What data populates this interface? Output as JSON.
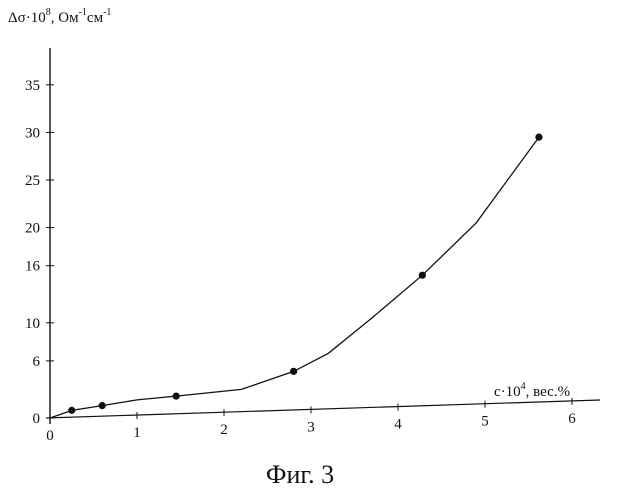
{
  "caption": "Фиг. 3",
  "chart_data": {
    "type": "line",
    "title": "",
    "ylabel": {
      "base": "Δσ·10",
      "exp1": "8",
      "mid": ", Ом",
      "exp2": "-1",
      "mid2": "см",
      "exp3": "-1"
    },
    "xlabel": {
      "base": "c·10",
      "exp1": "4",
      "rest": ", вес.%"
    },
    "xlim": [
      0,
      6.3
    ],
    "ylim": [
      0,
      38
    ],
    "x_ticks": [
      0,
      1,
      2,
      3,
      4,
      5,
      6
    ],
    "y_ticks": [
      {
        "value": 0,
        "label": "0"
      },
      {
        "value": 6,
        "label": "6"
      },
      {
        "value": 10,
        "label": "10"
      },
      {
        "value": 16,
        "label": "16"
      },
      {
        "value": 20,
        "label": "20"
      },
      {
        "value": 25,
        "label": "25"
      },
      {
        "value": 30,
        "label": "30"
      },
      {
        "value": 35,
        "label": "35"
      }
    ],
    "grid": false,
    "series": [
      {
        "points": [
          [
            0.25,
            0.8
          ],
          [
            0.6,
            1.3
          ],
          [
            1.45,
            2.3
          ],
          [
            2.8,
            4.9
          ],
          [
            4.28,
            15.0
          ],
          [
            5.62,
            29.5
          ]
        ],
        "curve": [
          [
            0,
            0
          ],
          [
            0.25,
            0.8
          ],
          [
            0.6,
            1.3
          ],
          [
            1.0,
            1.9
          ],
          [
            1.45,
            2.3
          ],
          [
            2.2,
            3.0
          ],
          [
            2.8,
            4.9
          ],
          [
            3.2,
            6.8
          ],
          [
            3.7,
            10.5
          ],
          [
            4.28,
            15.0
          ],
          [
            4.9,
            20.5
          ],
          [
            5.62,
            29.5
          ]
        ]
      }
    ]
  }
}
